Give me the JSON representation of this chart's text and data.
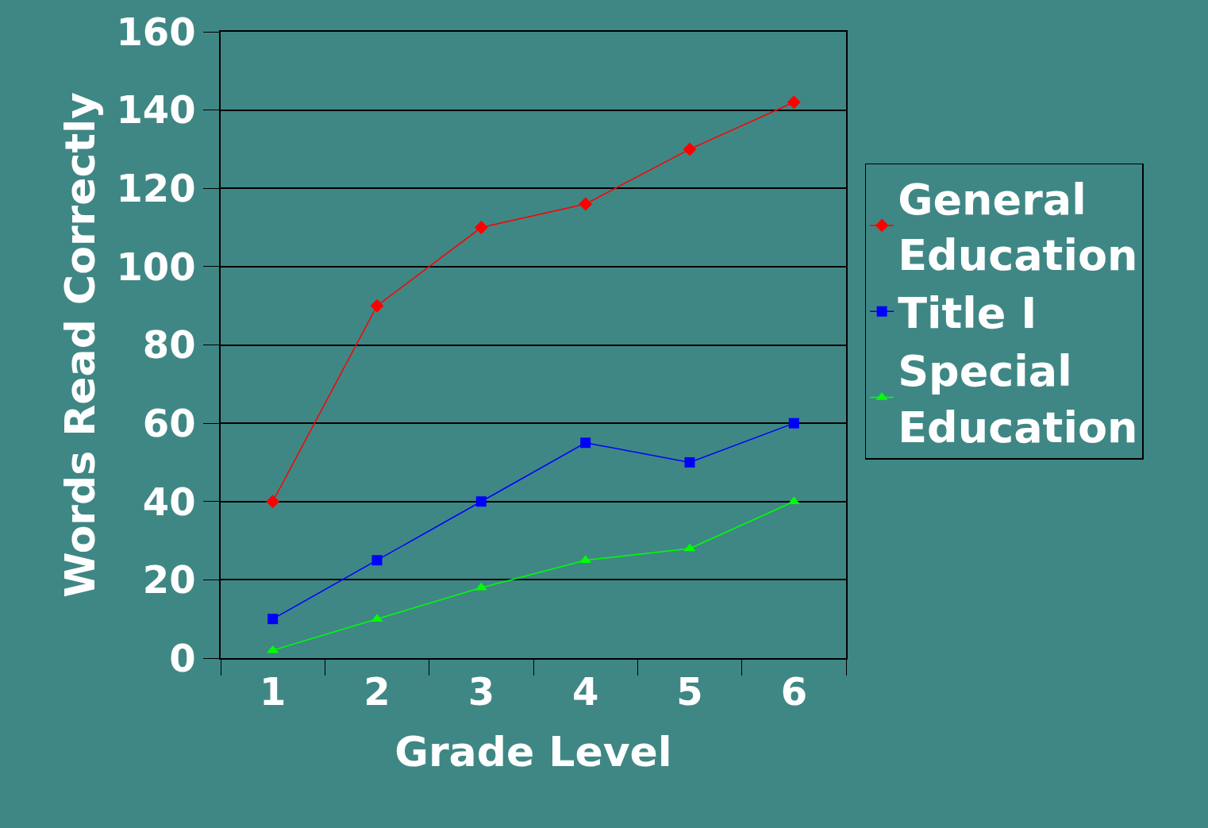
{
  "chart_data": {
    "type": "line",
    "xlabel": "Grade Level",
    "ylabel": "Words Read Correctly",
    "categories": [
      "1",
      "2",
      "3",
      "4",
      "5",
      "6"
    ],
    "series": [
      {
        "name": "General Education",
        "color": "#ff0000",
        "marker": "diamond",
        "values": [
          40,
          90,
          110,
          116,
          130,
          142
        ]
      },
      {
        "name": "Title I",
        "color": "#0000ff",
        "marker": "square",
        "values": [
          10,
          25,
          40,
          55,
          50,
          60
        ]
      },
      {
        "name": "Special Education",
        "color": "#00ff00",
        "marker": "triangle",
        "values": [
          2,
          10,
          18,
          25,
          28,
          40
        ]
      }
    ],
    "ylim": [
      0,
      160
    ],
    "yticks": [
      0,
      20,
      40,
      60,
      80,
      100,
      120,
      140,
      160
    ],
    "grid": "y",
    "legend": "right"
  }
}
